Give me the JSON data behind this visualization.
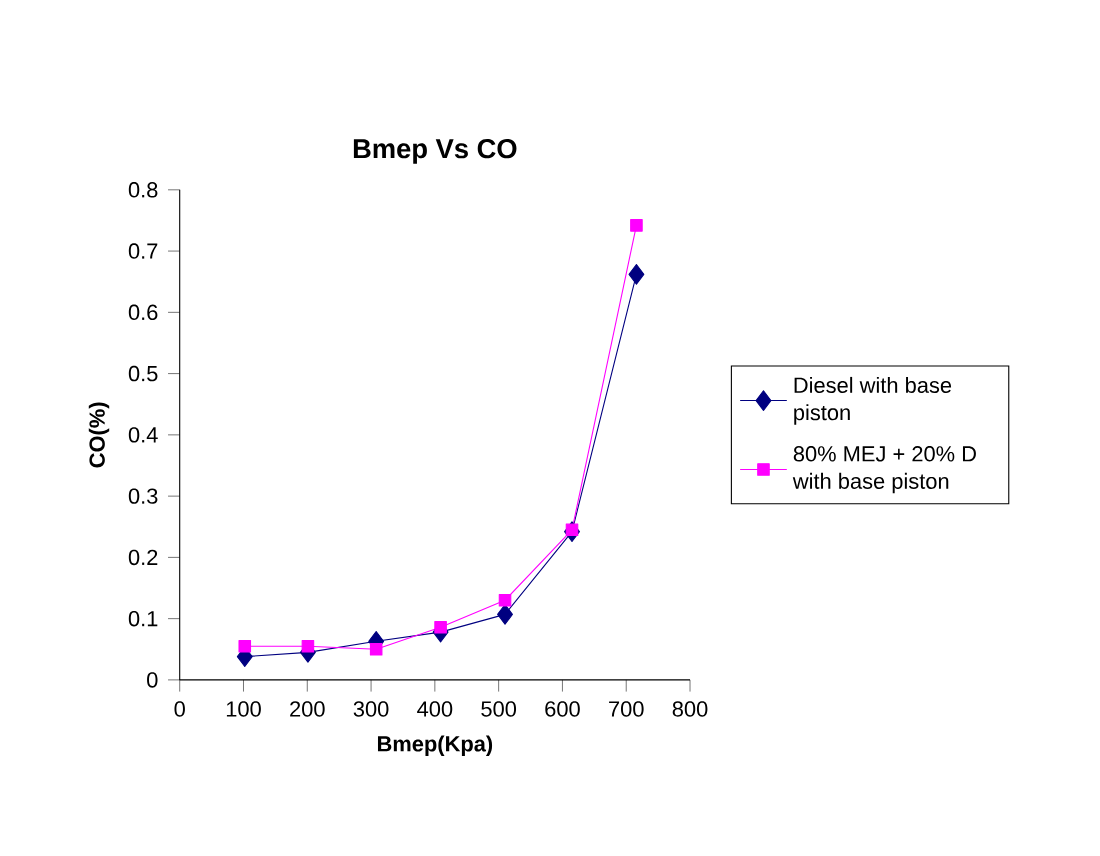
{
  "chart_data": {
    "type": "line",
    "title": "Bmep Vs CO",
    "xlabel": "Bmep(Kpa)",
    "ylabel": "CO(%)",
    "xlim": [
      0,
      800
    ],
    "xticks": [
      0,
      100,
      200,
      300,
      400,
      500,
      600,
      700,
      800
    ],
    "ylim": [
      0,
      0.8
    ],
    "yticks": [
      0,
      0.1,
      0.2,
      0.3,
      0.4,
      0.5,
      0.6,
      0.7,
      0.8
    ],
    "legend": "right",
    "grid": false,
    "series": [
      {
        "name": "Diesel with base piston",
        "color": "#000080",
        "marker": "diamond",
        "x": [
          102,
          201,
          308,
          409,
          510,
          615,
          716
        ],
        "values": [
          0.038,
          0.045,
          0.063,
          0.078,
          0.107,
          0.242,
          0.662
        ]
      },
      {
        "name": " 80% MEJ + 20% D with base piston",
        "color": "#ff00ff",
        "marker": "square",
        "x": [
          102,
          201,
          308,
          409,
          510,
          615,
          716
        ],
        "values": [
          0.055,
          0.055,
          0.05,
          0.086,
          0.13,
          0.245,
          0.742
        ]
      }
    ]
  }
}
